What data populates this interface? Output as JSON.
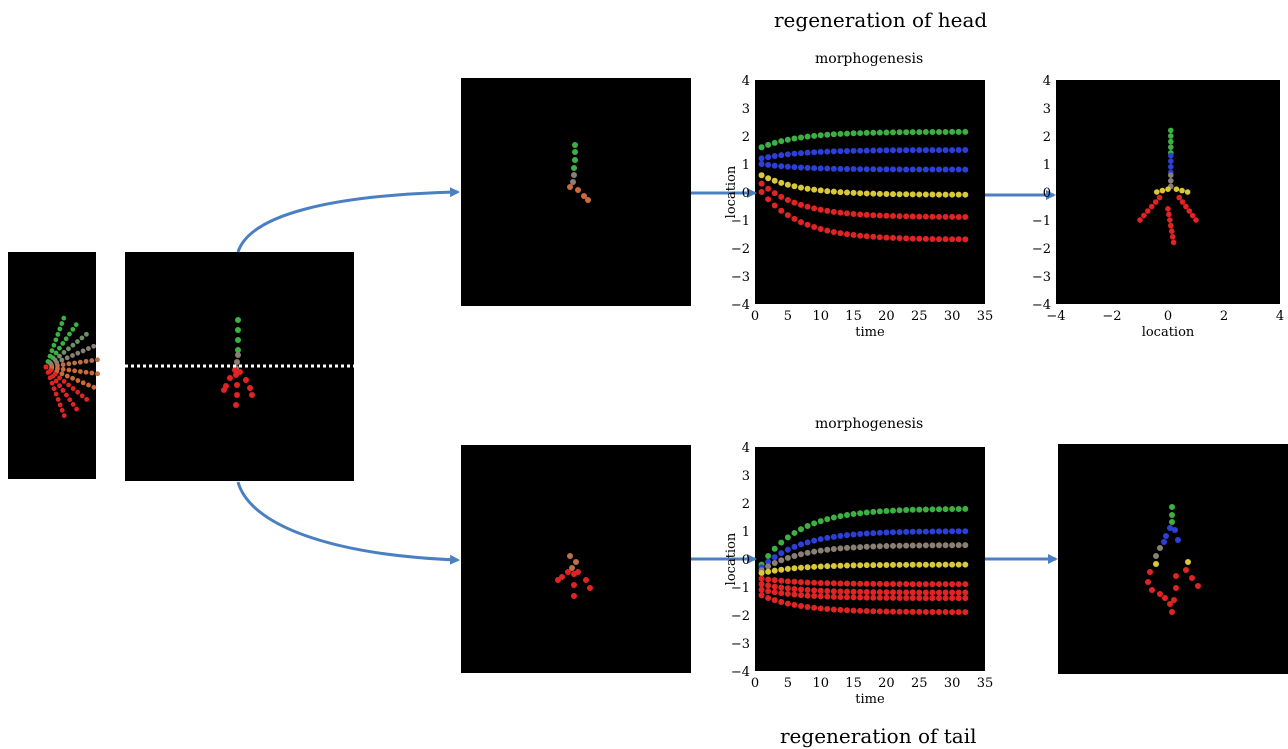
{
  "captions": {
    "top_title": "regeneration of head",
    "bottom_title": "regeneration of tail",
    "top_chart_title": "morphogenesis",
    "bottom_chart_title": "morphogenesis",
    "x_label_time": "time",
    "y_label_location": "location",
    "x_label_location": "location"
  },
  "colors": {
    "green": "#3cb043",
    "gray_green": "#6f8f68",
    "blue": "#2c3fd8",
    "gray": "#8a7f74",
    "brown": "#b7724a",
    "orange": "#cc6a3a",
    "yellow": "#d8c83a",
    "red": "#e02424",
    "arrow": "#4a7fc1"
  },
  "chart_data": [
    {
      "type": "scatter",
      "title": "morphogenesis",
      "xlabel": "time",
      "ylabel": "location",
      "xlim": [
        0,
        35
      ],
      "ylim": [
        -4,
        4
      ],
      "xticks": [
        "0",
        "5",
        "10",
        "15",
        "20",
        "25",
        "30",
        "35"
      ],
      "yticks": [
        "4",
        "3",
        "2",
        "1",
        "0",
        "−1",
        "−2",
        "−3",
        "−4"
      ],
      "series": [
        {
          "color": "green",
          "start": 1.6,
          "end": 2.15
        },
        {
          "color": "blue",
          "start": 1.2,
          "end": 1.5
        },
        {
          "color": "blue",
          "start": 1.0,
          "end": 0.8
        },
        {
          "color": "yellow",
          "start": 0.6,
          "end": -0.1
        },
        {
          "color": "red",
          "start": 0.3,
          "end": -0.9
        },
        {
          "color": "red",
          "start": 0.0,
          "end": -1.7
        }
      ]
    },
    {
      "type": "scatter",
      "title": "morphogenesis",
      "xlabel": "time",
      "ylabel": "location",
      "xlim": [
        0,
        35
      ],
      "ylim": [
        -4,
        4
      ],
      "xticks": [
        "0",
        "5",
        "10",
        "15",
        "20",
        "25",
        "30",
        "35"
      ],
      "yticks": [
        "4",
        "3",
        "2",
        "1",
        "0",
        "−1",
        "−2",
        "−3",
        "−4"
      ],
      "series": [
        {
          "color": "green",
          "start": -0.2,
          "end": 1.8
        },
        {
          "color": "blue",
          "start": -0.3,
          "end": 1.0
        },
        {
          "color": "gray",
          "start": -0.4,
          "end": 0.5
        },
        {
          "color": "yellow",
          "start": -0.5,
          "end": -0.2
        },
        {
          "color": "red",
          "start": -0.7,
          "end": -0.9
        },
        {
          "color": "red",
          "start": -0.9,
          "end": -1.2
        },
        {
          "color": "red",
          "start": -1.1,
          "end": -1.4
        },
        {
          "color": "red",
          "start": -1.3,
          "end": -1.9
        }
      ]
    },
    {
      "type": "scatter",
      "title": "",
      "xlabel": "location",
      "ylabel": "",
      "xlim": [
        -4,
        4
      ],
      "ylim": [
        -4,
        4
      ],
      "xticks": [
        "−4",
        "−2",
        "0",
        "2",
        "4"
      ],
      "yticks": [
        "4",
        "3",
        "2",
        "1",
        "0",
        "−1",
        "−2",
        "−3",
        "−4"
      ]
    }
  ]
}
